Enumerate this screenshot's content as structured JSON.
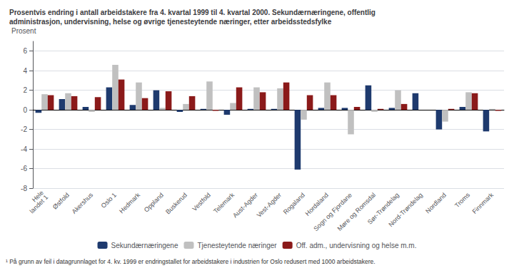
{
  "chart_data": {
    "type": "bar",
    "title": "Prosentvis endring i antall arbeidstakere fra 4. kvartal 1999 til 4. kvartal 2000. Sekundærnæringene, offentlig\nadministrasjon, undervisning, helse og øvrige tjenesteytende næringer, etter arbeidsstedsfylke",
    "ylabel": "Prosent",
    "categories": [
      "Hele\nlandet 1",
      "Østfold",
      "Akershus",
      "Oslo 1",
      "Hedmark",
      "Oppland",
      "Buskerud",
      "Vestfold",
      "Telemark",
      "Aust-Agder",
      "Vest-Agder",
      "Rogaland",
      "Hordaland",
      "Sogn og Fjordane",
      "Møre og Romsdal",
      "Sør-Trøndelag",
      "Nord-Trøndelag",
      "Nordland",
      "Troms",
      "Finnmark"
    ],
    "series": [
      {
        "name": "Sekundærnæringene",
        "color": "#1e3a6e",
        "values": [
          -0.3,
          1.1,
          0.3,
          2.3,
          0.5,
          2.0,
          -0.2,
          0.1,
          -0.5,
          0.1,
          0.1,
          -6.1,
          0.2,
          0.2,
          2.5,
          0.2,
          1.7,
          -2.0,
          0.3,
          -2.2
        ]
      },
      {
        "name": "Tjenesteytende næringer",
        "color": "#c0c0c0",
        "values": [
          1.6,
          1.7,
          -0.2,
          4.6,
          2.8,
          0.2,
          0.6,
          2.9,
          0.7,
          2.3,
          2.2,
          -1.0,
          2.8,
          -2.5,
          -0.2,
          2.0,
          0.0,
          -1.2,
          1.8,
          0.1
        ]
      },
      {
        "name": "Off. adm., undervisning og helse m.m.",
        "color": "#8b1a1a",
        "values": [
          1.5,
          1.4,
          1.3,
          3.1,
          1.2,
          1.9,
          1.4,
          -0.1,
          2.3,
          1.8,
          2.8,
          1.5,
          1.5,
          0.3,
          0.1,
          0.6,
          0.0,
          0.1,
          1.7,
          -0.1
        ]
      }
    ],
    "ylim": [
      -8,
      7
    ],
    "yticks": [
      -8,
      -6,
      -4,
      -2,
      0,
      2,
      4,
      6
    ],
    "grid": true,
    "legend": "bottom",
    "annotations": [
      "¹ På grunn av feil i datagrunnlaget for 4. kv. 1999 er endringstallet for arbeidstakere i industrien for Oslo redusert med 1000 arbeidstakere."
    ]
  }
}
